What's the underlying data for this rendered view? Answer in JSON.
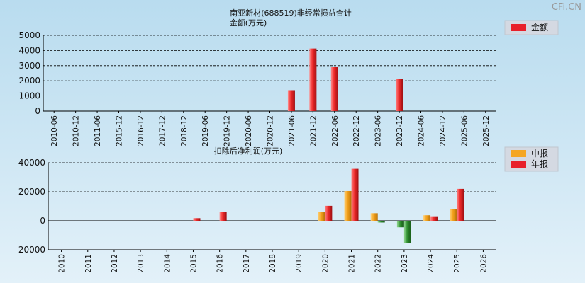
{
  "watermark": "CFi.CN",
  "chart_data": [
    {
      "type": "bar",
      "title": "南亚新材(688519)非经常损益合计",
      "ylabel": "金额(万元)",
      "ylim": [
        0,
        5000
      ],
      "yticks": [
        0,
        1000,
        2000,
        3000,
        4000,
        5000
      ],
      "grid": true,
      "legend": "top-right",
      "colors": {
        "金额": "#e8202a"
      },
      "categories": [
        "2010-06",
        "2010-12",
        "2011-06",
        "2015-12",
        "2016-12",
        "2017-12",
        "2018-12",
        "2019-06",
        "2019-12",
        "2020-06",
        "2020-12",
        "2021-06",
        "2021-12",
        "2022-06",
        "2022-12",
        "2023-06",
        "2023-12",
        "2024-06",
        "2024-12",
        "2025-06",
        "2025-12"
      ],
      "series": [
        {
          "name": "金额",
          "values": [
            0,
            0,
            0,
            0,
            0,
            0,
            0,
            0,
            0,
            0,
            0,
            1380,
            4130,
            2920,
            0,
            0,
            2130,
            0,
            0,
            0,
            0
          ]
        }
      ]
    },
    {
      "type": "bar",
      "title": "扣除后净利润(万元)",
      "ylim": [
        -20000,
        40000
      ],
      "yticks": [
        -20000,
        0,
        20000,
        40000
      ],
      "grid": true,
      "legend": "top-right",
      "colors": {
        "中报": "#f5a623",
        "年报": "#e8202a",
        "negative": "#2f8f2f"
      },
      "categories": [
        "2010",
        "2011",
        "2012",
        "2013",
        "2014",
        "2015",
        "2016",
        "2017",
        "2018",
        "2019",
        "2020",
        "2021",
        "2022",
        "2023",
        "2024",
        "2025",
        "2026"
      ],
      "series": [
        {
          "name": "中报",
          "values": [
            0,
            0,
            0,
            0,
            0,
            0,
            0,
            0,
            0,
            0,
            6000,
            20500,
            5200,
            -4500,
            3800,
            8200,
            0
          ]
        },
        {
          "name": "年报",
          "values": [
            0,
            0,
            0,
            0,
            0,
            1800,
            6200,
            0,
            0,
            0,
            10300,
            35800,
            -1200,
            -15500,
            2600,
            22000,
            0
          ]
        }
      ]
    }
  ]
}
